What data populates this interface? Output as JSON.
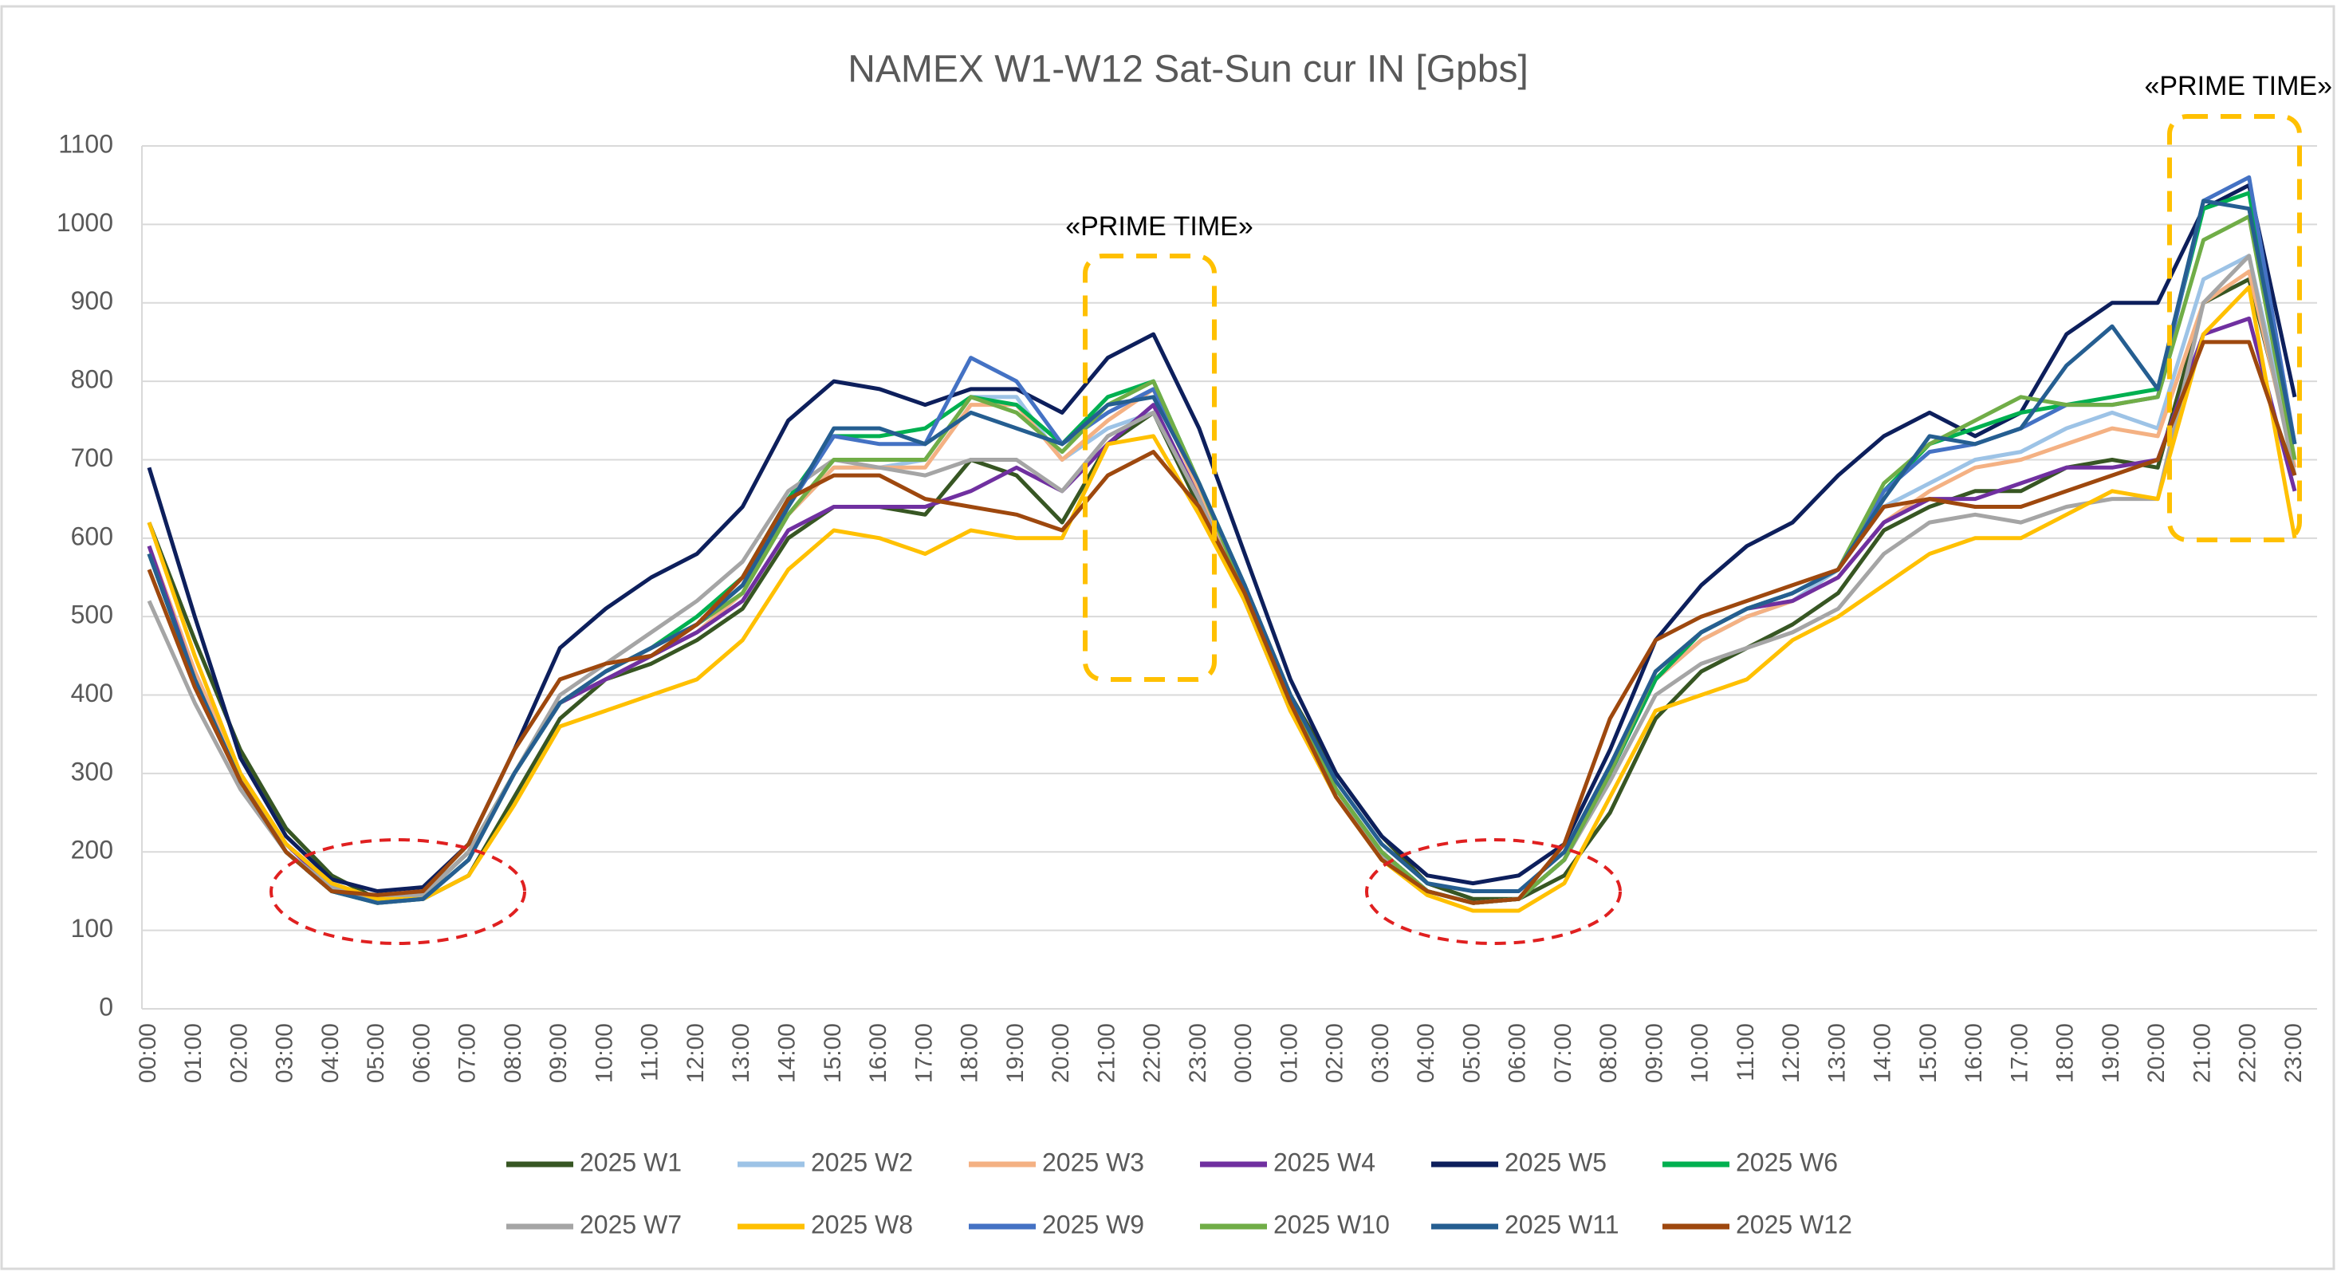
{
  "chart_data": {
    "type": "line",
    "title": "NAMEX W1-W12  Sat-Sun cur IN [Gpbs]",
    "categories": [
      "00:00",
      "01:00",
      "02:00",
      "03:00",
      "04:00",
      "05:00",
      "06:00",
      "07:00",
      "08:00",
      "09:00",
      "10:00",
      "11:00",
      "12:00",
      "13:00",
      "14:00",
      "15:00",
      "16:00",
      "17:00",
      "18:00",
      "19:00",
      "20:00",
      "21:00",
      "22:00",
      "23:00",
      "00:00",
      "01:00",
      "02:00",
      "03:00",
      "04:00",
      "05:00",
      "06:00",
      "07:00",
      "08:00",
      "09:00",
      "10:00",
      "11:00",
      "12:00",
      "13:00",
      "14:00",
      "15:00",
      "16:00",
      "17:00",
      "18:00",
      "19:00",
      "20:00",
      "21:00",
      "22:00",
      "23:00"
    ],
    "ylim": [
      0,
      1100
    ],
    "yticks": [
      0,
      100,
      200,
      300,
      400,
      500,
      600,
      700,
      800,
      900,
      1000,
      1100
    ],
    "grid": true,
    "legend": "bottom",
    "annotations": [
      "«PRIME TIME»",
      "«PRIME TIME»"
    ],
    "series": [
      {
        "name": "2025 W1",
        "color": "#375623",
        "values": [
          620,
          470,
          330,
          230,
          170,
          140,
          140,
          170,
          270,
          370,
          420,
          440,
          470,
          510,
          600,
          640,
          640,
          630,
          700,
          680,
          620,
          720,
          760,
          640,
          540,
          400,
          300,
          220,
          160,
          140,
          140,
          170,
          250,
          370,
          430,
          460,
          490,
          530,
          610,
          640,
          660,
          660,
          690,
          700,
          690,
          900,
          930,
          700
        ]
      },
      {
        "name": "2025 W2",
        "color": "#9dc3e6",
        "values": [
          590,
          430,
          300,
          210,
          160,
          140,
          145,
          200,
          300,
          390,
          420,
          450,
          480,
          530,
          630,
          690,
          690,
          700,
          780,
          780,
          700,
          740,
          760,
          650,
          530,
          390,
          280,
          200,
          150,
          135,
          140,
          190,
          300,
          420,
          470,
          500,
          520,
          560,
          640,
          670,
          700,
          710,
          740,
          760,
          740,
          930,
          960,
          700
        ]
      },
      {
        "name": "2025 W3",
        "color": "#f4b183",
        "values": [
          590,
          430,
          300,
          210,
          160,
          140,
          145,
          200,
          300,
          390,
          420,
          450,
          480,
          530,
          630,
          690,
          690,
          690,
          770,
          770,
          700,
          750,
          790,
          660,
          530,
          390,
          280,
          200,
          150,
          135,
          140,
          190,
          300,
          420,
          470,
          500,
          520,
          550,
          620,
          660,
          690,
          700,
          720,
          740,
          730,
          900,
          940,
          690
        ]
      },
      {
        "name": "2025 W4",
        "color": "#7030a0",
        "values": [
          590,
          420,
          290,
          210,
          155,
          140,
          145,
          200,
          300,
          390,
          420,
          450,
          480,
          520,
          610,
          640,
          640,
          640,
          660,
          690,
          660,
          720,
          770,
          650,
          520,
          380,
          280,
          200,
          150,
          135,
          140,
          190,
          300,
          420,
          480,
          510,
          520,
          550,
          620,
          650,
          650,
          670,
          690,
          690,
          700,
          860,
          880,
          660
        ]
      },
      {
        "name": "2025 W5",
        "color": "#0d1f5c",
        "values": [
          690,
          500,
          320,
          220,
          165,
          150,
          155,
          210,
          330,
          460,
          510,
          550,
          580,
          640,
          750,
          800,
          790,
          770,
          790,
          790,
          760,
          830,
          860,
          740,
          580,
          420,
          300,
          220,
          170,
          160,
          170,
          210,
          330,
          470,
          540,
          590,
          620,
          680,
          730,
          760,
          730,
          760,
          860,
          900,
          900,
          1020,
          1050,
          780
        ]
      },
      {
        "name": "2025 W6",
        "color": "#00b050",
        "values": [
          580,
          420,
          290,
          200,
          150,
          135,
          145,
          200,
          300,
          390,
          430,
          460,
          500,
          550,
          650,
          730,
          730,
          740,
          780,
          770,
          720,
          780,
          800,
          670,
          540,
          390,
          280,
          200,
          150,
          135,
          140,
          190,
          300,
          420,
          480,
          510,
          530,
          560,
          660,
          720,
          740,
          760,
          770,
          780,
          790,
          1020,
          1040,
          720
        ]
      },
      {
        "name": "2025 W7",
        "color": "#a5a5a5",
        "values": [
          520,
          390,
          280,
          200,
          155,
          140,
          145,
          200,
          300,
          400,
          440,
          480,
          520,
          570,
          660,
          700,
          690,
          680,
          700,
          700,
          660,
          730,
          760,
          650,
          520,
          380,
          270,
          195,
          150,
          135,
          140,
          190,
          290,
          400,
          440,
          460,
          480,
          510,
          580,
          620,
          630,
          620,
          640,
          650,
          650,
          900,
          960,
          680
        ]
      },
      {
        "name": "2025 W8",
        "color": "#ffc000",
        "values": [
          620,
          450,
          300,
          210,
          160,
          140,
          140,
          170,
          260,
          360,
          380,
          400,
          420,
          470,
          560,
          610,
          600,
          580,
          610,
          600,
          600,
          720,
          730,
          630,
          520,
          380,
          270,
          190,
          145,
          125,
          125,
          160,
          270,
          380,
          400,
          420,
          470,
          500,
          540,
          580,
          600,
          600,
          630,
          660,
          650,
          860,
          920,
          600
        ]
      },
      {
        "name": "2025 W9",
        "color": "#4472c4",
        "values": [
          580,
          420,
          290,
          200,
          150,
          135,
          140,
          190,
          300,
          390,
          430,
          460,
          490,
          540,
          640,
          730,
          720,
          720,
          830,
          800,
          720,
          760,
          790,
          670,
          530,
          390,
          280,
          200,
          150,
          135,
          140,
          190,
          300,
          430,
          480,
          510,
          530,
          560,
          660,
          710,
          720,
          740,
          770,
          770,
          780,
          1030,
          1060,
          720
        ]
      },
      {
        "name": "2025 W10",
        "color": "#70ad47",
        "values": [
          580,
          420,
          290,
          200,
          150,
          135,
          140,
          190,
          300,
          390,
          430,
          460,
          490,
          530,
          630,
          700,
          700,
          700,
          780,
          760,
          710,
          770,
          800,
          670,
          530,
          390,
          280,
          200,
          150,
          135,
          140,
          190,
          300,
          430,
          480,
          510,
          530,
          560,
          670,
          720,
          750,
          780,
          770,
          770,
          780,
          980,
          1010,
          700
        ]
      },
      {
        "name": "2025 W11",
        "color": "#255e91",
        "values": [
          580,
          420,
          290,
          200,
          150,
          135,
          140,
          190,
          300,
          390,
          430,
          460,
          490,
          540,
          640,
          740,
          740,
          720,
          760,
          740,
          720,
          770,
          780,
          670,
          540,
          400,
          290,
          210,
          160,
          150,
          150,
          200,
          310,
          430,
          480,
          510,
          530,
          560,
          650,
          730,
          720,
          740,
          820,
          870,
          790,
          1030,
          1020,
          720
        ]
      },
      {
        "name": "2025 W12",
        "color": "#9e480e",
        "values": [
          560,
          410,
          290,
          200,
          150,
          145,
          150,
          210,
          330,
          420,
          440,
          450,
          490,
          550,
          650,
          680,
          680,
          650,
          640,
          630,
          610,
          680,
          710,
          640,
          530,
          390,
          270,
          190,
          150,
          135,
          140,
          210,
          370,
          470,
          500,
          520,
          540,
          560,
          640,
          650,
          640,
          640,
          660,
          680,
          700,
          850,
          850,
          680
        ]
      }
    ]
  }
}
